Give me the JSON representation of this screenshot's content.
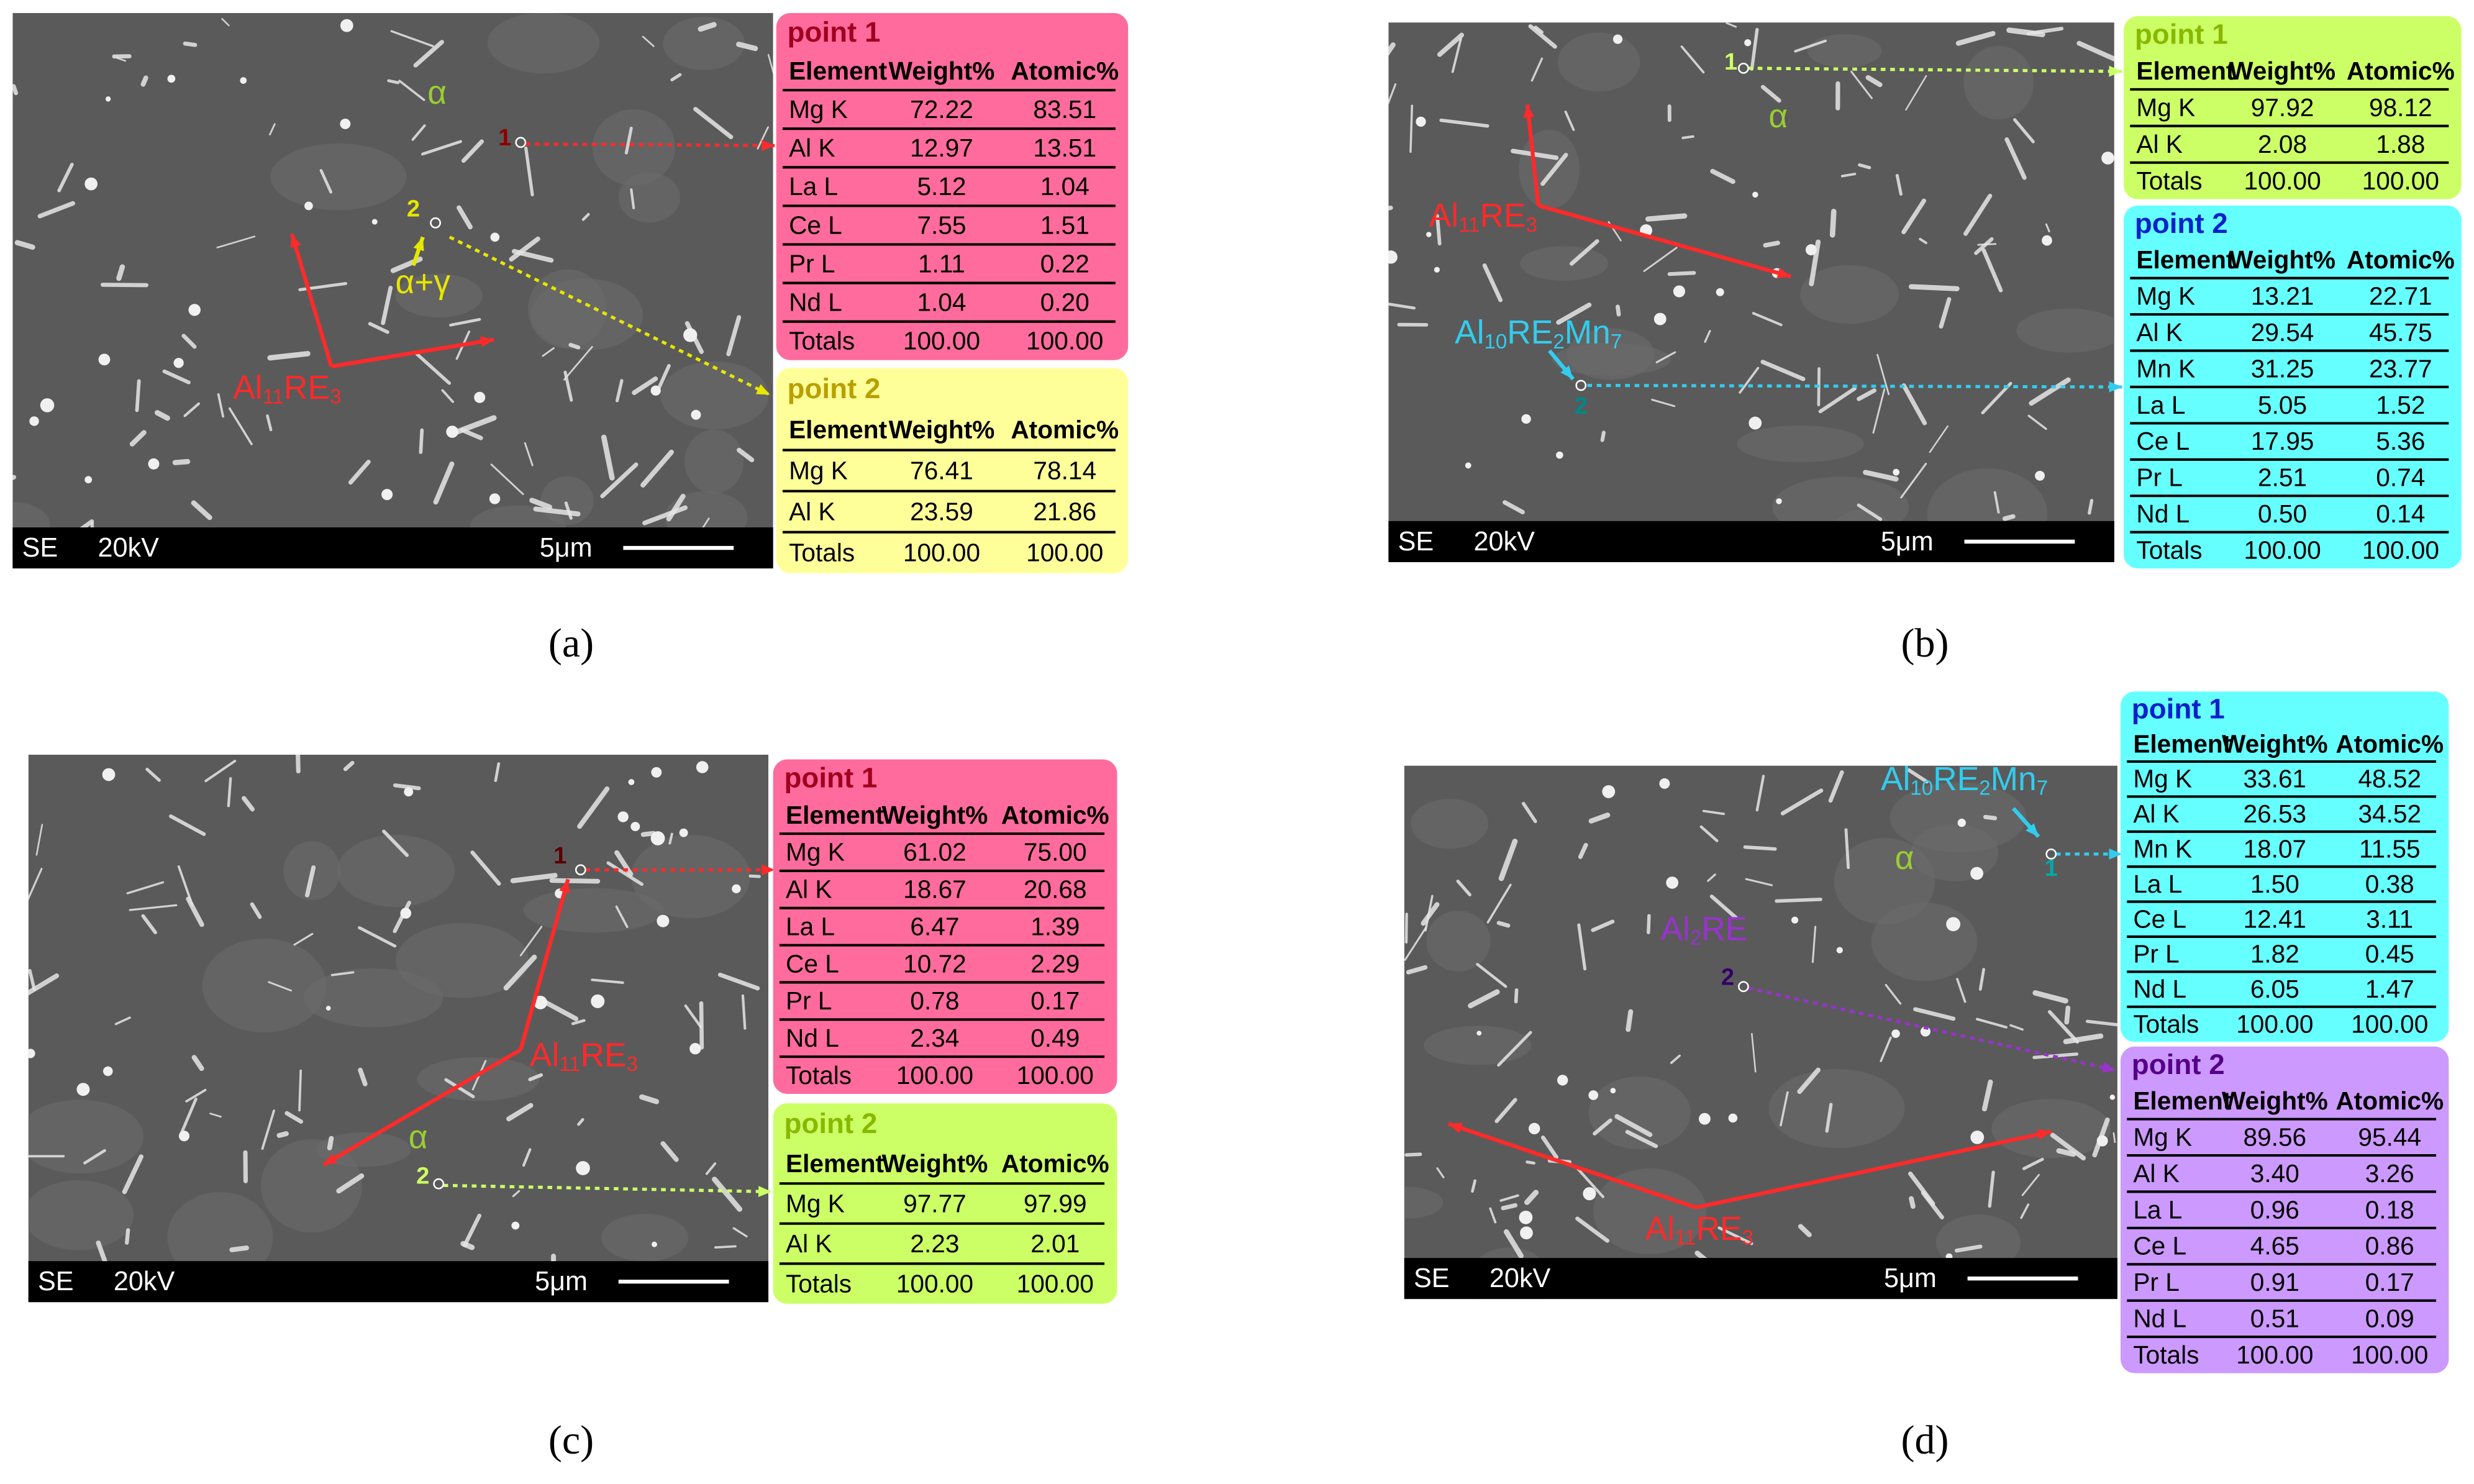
{
  "panels": [
    {
      "label": "(a)",
      "footer": {
        "mode": "SE",
        "voltage": "20kV",
        "scale": "5μm"
      },
      "annotations": [
        {
          "parts": [
            "α"
          ],
          "color": "#9acd32"
        },
        {
          "parts": [
            "α+γ"
          ],
          "color": "#e6e600"
        },
        {
          "parts": [
            "Al",
            "11",
            "RE",
            "3"
          ],
          "color": "#ff2a2a"
        },
        {
          "parts": [
            "1"
          ],
          "color": "#8b0000"
        },
        {
          "parts": [
            "2"
          ],
          "color": "#e6e600"
        }
      ],
      "tables": [
        {
          "title": "point 1",
          "color": "#ff6b9d",
          "title_color": "#a0001e",
          "header": [
            "Element",
            "Weight%",
            "Atomic%"
          ],
          "rows": [
            [
              "Mg K",
              "72.22",
              "83.51"
            ],
            [
              "Al K",
              "12.97",
              "13.51"
            ],
            [
              "La L",
              "5.12",
              "1.04"
            ],
            [
              "Ce L",
              "7.55",
              "1.51"
            ],
            [
              "Pr L",
              "1.11",
              "0.22"
            ],
            [
              "Nd L",
              "1.04",
              "0.20"
            ],
            [
              "Totals",
              "100.00",
              "100.00"
            ]
          ]
        },
        {
          "title": "point 2",
          "color": "#ffff99",
          "title_color": "#b8a000",
          "header": [
            "Element",
            "Weight%",
            "Atomic%"
          ],
          "rows": [
            [
              "Mg K",
              "76.41",
              "78.14"
            ],
            [
              "Al K",
              "23.59",
              "21.86"
            ],
            [
              "Totals",
              "100.00",
              "100.00"
            ]
          ]
        }
      ]
    },
    {
      "label": "(b)",
      "footer": {
        "mode": "SE",
        "voltage": "20kV",
        "scale": "5μm"
      },
      "annotations": [
        {
          "parts": [
            "α"
          ],
          "color": "#9acd32"
        },
        {
          "parts": [
            "Al",
            "11",
            "RE",
            "3"
          ],
          "color": "#ff2a2a"
        },
        {
          "parts": [
            "Al",
            "10",
            "RE",
            "2",
            "Mn",
            "7"
          ],
          "color": "#33ccee"
        },
        {
          "parts": [
            "1"
          ],
          "color": "#ccff66"
        },
        {
          "parts": [
            "2"
          ],
          "color": "#008888"
        }
      ],
      "tables": [
        {
          "title": "point 1",
          "color": "#ccff66",
          "title_color": "#88b800",
          "header": [
            "Element",
            "Weight%",
            "Atomic%"
          ],
          "rows": [
            [
              "Mg K",
              "97.92",
              "98.12"
            ],
            [
              "Al K",
              "2.08",
              "1.88"
            ],
            [
              "Totals",
              "100.00",
              "100.00"
            ]
          ]
        },
        {
          "title": "point 2",
          "color": "#66ffff",
          "title_color": "#0022cc",
          "header": [
            "Element",
            "Weight%",
            "Atomic%"
          ],
          "rows": [
            [
              "Mg K",
              "13.21",
              "22.71"
            ],
            [
              "Al K",
              "29.54",
              "45.75"
            ],
            [
              "Mn K",
              "31.25",
              "23.77"
            ],
            [
              "La L",
              "5.05",
              "1.52"
            ],
            [
              "Ce L",
              "17.95",
              "5.36"
            ],
            [
              "Pr L",
              "2.51",
              "0.74"
            ],
            [
              "Nd L",
              "0.50",
              "0.14"
            ],
            [
              "Totals",
              "100.00",
              "100.00"
            ]
          ]
        }
      ]
    },
    {
      "label": "(c)",
      "footer": {
        "mode": "SE",
        "voltage": "20kV",
        "scale": "5μm"
      },
      "annotations": [
        {
          "parts": [
            "α"
          ],
          "color": "#9acd32"
        },
        {
          "parts": [
            "Al",
            "11",
            "RE",
            "3"
          ],
          "color": "#ff2a2a"
        },
        {
          "parts": [
            "1"
          ],
          "color": "#5a0000"
        },
        {
          "parts": [
            "2"
          ],
          "color": "#ccff66"
        }
      ],
      "tables": [
        {
          "title": "point 1",
          "color": "#ff6b9d",
          "title_color": "#a0001e",
          "header": [
            "Element",
            "Weight%",
            "Atomic%"
          ],
          "rows": [
            [
              "Mg K",
              "61.02",
              "75.00"
            ],
            [
              "Al K",
              "18.67",
              "20.68"
            ],
            [
              "La L",
              "6.47",
              "1.39"
            ],
            [
              "Ce L",
              "10.72",
              "2.29"
            ],
            [
              "Pr L",
              "0.78",
              "0.17"
            ],
            [
              "Nd L",
              "2.34",
              "0.49"
            ],
            [
              "Totals",
              "100.00",
              "100.00"
            ]
          ]
        },
        {
          "title": "point 2",
          "color": "#ccff66",
          "title_color": "#88b800",
          "header": [
            "Element",
            "Weight%",
            "Atomic%"
          ],
          "rows": [
            [
              "Mg K",
              "97.77",
              "97.99"
            ],
            [
              "Al K",
              "2.23",
              "2.01"
            ],
            [
              "Totals",
              "100.00",
              "100.00"
            ]
          ]
        }
      ]
    },
    {
      "label": "(d)",
      "footer": {
        "mode": "SE",
        "voltage": "20kV",
        "scale": "5μm"
      },
      "annotations": [
        {
          "parts": [
            "α"
          ],
          "color": "#9acd32"
        },
        {
          "parts": [
            "Al",
            "10",
            "RE",
            "2",
            "Mn",
            "7"
          ],
          "color": "#33ccee"
        },
        {
          "parts": [
            "Al",
            "2",
            "RE"
          ],
          "color": "#9933cc"
        },
        {
          "parts": [
            "1"
          ],
          "color": "#00aaaa"
        },
        {
          "parts": [
            "2"
          ],
          "color": "#330066"
        },
        {
          "parts": [
            "Al",
            "11",
            "RE",
            "3"
          ],
          "color": "#ff2a2a"
        }
      ],
      "tables": [
        {
          "title": "point 1",
          "color": "#66ffff",
          "title_color": "#0022cc",
          "header": [
            "Element",
            "Weight%",
            "Atomic%"
          ],
          "rows": [
            [
              "Mg K",
              "33.61",
              "48.52"
            ],
            [
              "Al K",
              "26.53",
              "34.52"
            ],
            [
              "Mn K",
              "18.07",
              "11.55"
            ],
            [
              "La L",
              "1.50",
              "0.38"
            ],
            [
              "Ce L",
              "12.41",
              "3.11"
            ],
            [
              "Pr L",
              "1.82",
              "0.45"
            ],
            [
              "Nd L",
              "6.05",
              "1.47"
            ],
            [
              "Totals",
              "100.00",
              "100.00"
            ]
          ]
        },
        {
          "title": "point 2",
          "color": "#cc99ff",
          "title_color": "#550088",
          "header": [
            "Element",
            "Weight%",
            "Atomic%"
          ],
          "rows": [
            [
              "Mg K",
              "89.56",
              "95.44"
            ],
            [
              "Al K",
              "3.40",
              "3.26"
            ],
            [
              "La L",
              "0.96",
              "0.18"
            ],
            [
              "Ce L",
              "4.65",
              "0.86"
            ],
            [
              "Pr L",
              "0.91",
              "0.17"
            ],
            [
              "Nd L",
              "0.51",
              "0.09"
            ],
            [
              "Totals",
              "100.00",
              "100.00"
            ]
          ]
        }
      ]
    }
  ]
}
